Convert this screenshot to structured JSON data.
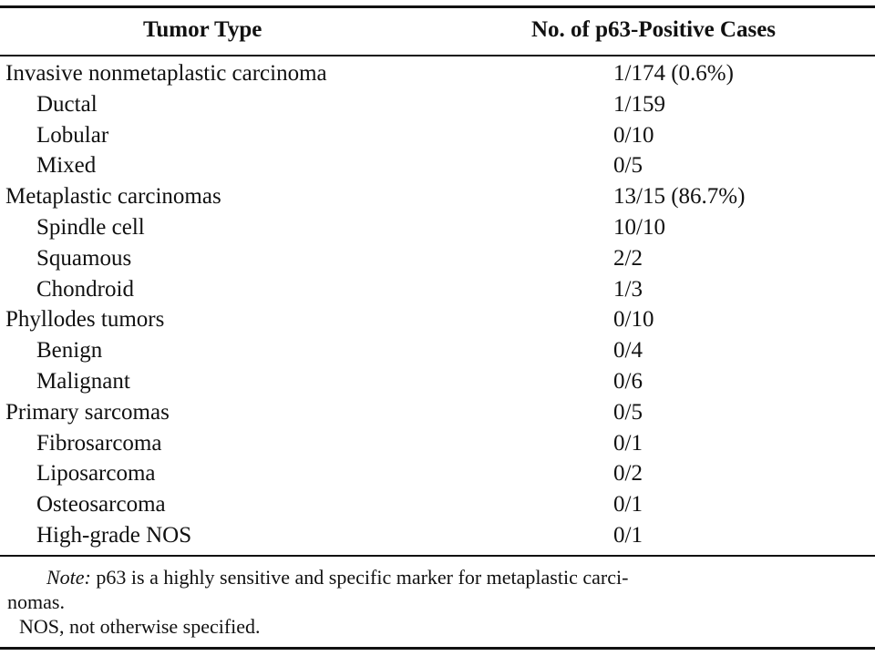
{
  "table": {
    "headers": {
      "tumor_type": "Tumor Type",
      "positive_cases": "No. of p63-Positive Cases"
    },
    "rows": [
      {
        "type": "Invasive nonmetaplastic carcinoma",
        "value": "1/174 (0.6%)",
        "indent": false
      },
      {
        "type": "Ductal",
        "value": "1/159",
        "indent": true
      },
      {
        "type": "Lobular",
        "value": "0/10",
        "indent": true
      },
      {
        "type": "Mixed",
        "value": "0/5",
        "indent": true
      },
      {
        "type": "Metaplastic carcinomas",
        "value": "13/15 (86.7%)",
        "indent": false
      },
      {
        "type": "Spindle cell",
        "value": "10/10",
        "indent": true
      },
      {
        "type": "Squamous",
        "value": "2/2",
        "indent": true
      },
      {
        "type": "Chondroid",
        "value": "1/3",
        "indent": true
      },
      {
        "type": "Phyllodes tumors",
        "value": "0/10",
        "indent": false
      },
      {
        "type": "Benign",
        "value": "0/4",
        "indent": true
      },
      {
        "type": "Malignant",
        "value": "0/6",
        "indent": true
      },
      {
        "type": "Primary sarcomas",
        "value": "0/5",
        "indent": false
      },
      {
        "type": "Fibrosarcoma",
        "value": "0/1",
        "indent": true
      },
      {
        "type": "Liposarcoma",
        "value": "0/2",
        "indent": true
      },
      {
        "type": "Osteosarcoma",
        "value": "0/1",
        "indent": true
      },
      {
        "type": "High-grade NOS",
        "value": "0/1",
        "indent": true
      }
    ]
  },
  "notes": {
    "note_label": "Note:",
    "note_text_line1": " p63 is a highly sensitive and specific marker for metaplastic carci-",
    "note_text_line2": "nomas.",
    "abbreviation": "NOS, not otherwise specified."
  }
}
